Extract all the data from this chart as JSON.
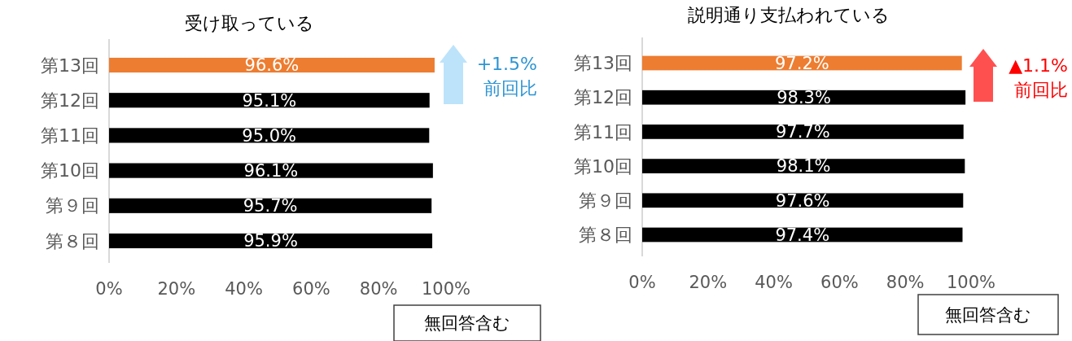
{
  "chart_data": [
    {
      "type": "bar",
      "orientation": "horizontal",
      "title": "受け取っている",
      "categories": [
        "第13回",
        "第12回",
        "第11回",
        "第10回",
        "第９回",
        "第８回"
      ],
      "values": [
        96.6,
        95.1,
        95.0,
        96.1,
        95.7,
        95.9
      ],
      "colors": [
        "#ed7d31",
        "#000000",
        "#000000",
        "#000000",
        "#000000",
        "#000000"
      ],
      "value_labels": [
        "96.6%",
        "95.1%",
        "95.0%",
        "96.1%",
        "95.7%",
        "95.9%"
      ],
      "xlim": [
        0,
        100
      ],
      "xticks": [
        {
          "value": 0,
          "label": "0%"
        },
        {
          "value": 20,
          "label": "20%"
        },
        {
          "value": 40,
          "label": "40%"
        },
        {
          "value": 60,
          "label": "60%"
        },
        {
          "value": 80,
          "label": "80%"
        },
        {
          "value": 100,
          "label": "100%"
        }
      ],
      "annotations": [
        "+1.5%",
        "前回比",
        "無回答含む"
      ]
    },
    {
      "type": "bar",
      "orientation": "horizontal",
      "title": "説明通り支払われている",
      "categories": [
        "第13回",
        "第12回",
        "第11回",
        "第10回",
        "第９回",
        "第８回"
      ],
      "values": [
        97.2,
        98.3,
        97.7,
        98.1,
        97.6,
        97.4
      ],
      "colors": [
        "#ed7d31",
        "#000000",
        "#000000",
        "#000000",
        "#000000",
        "#000000"
      ],
      "value_labels": [
        "97.2%",
        "98.3%",
        "97.7%",
        "98.1%",
        "97.6%",
        "97.4%"
      ],
      "xlim": [
        0,
        100
      ],
      "xticks": [
        {
          "value": 0,
          "label": "0%"
        },
        {
          "value": 20,
          "label": "20%"
        },
        {
          "value": 40,
          "label": "40%"
        },
        {
          "value": 60,
          "label": "60%"
        },
        {
          "value": 80,
          "label": "80%"
        },
        {
          "value": 100,
          "label": "100%"
        }
      ],
      "annotations": [
        "▲1.1%",
        "前回比",
        "無回答含む"
      ]
    }
  ]
}
